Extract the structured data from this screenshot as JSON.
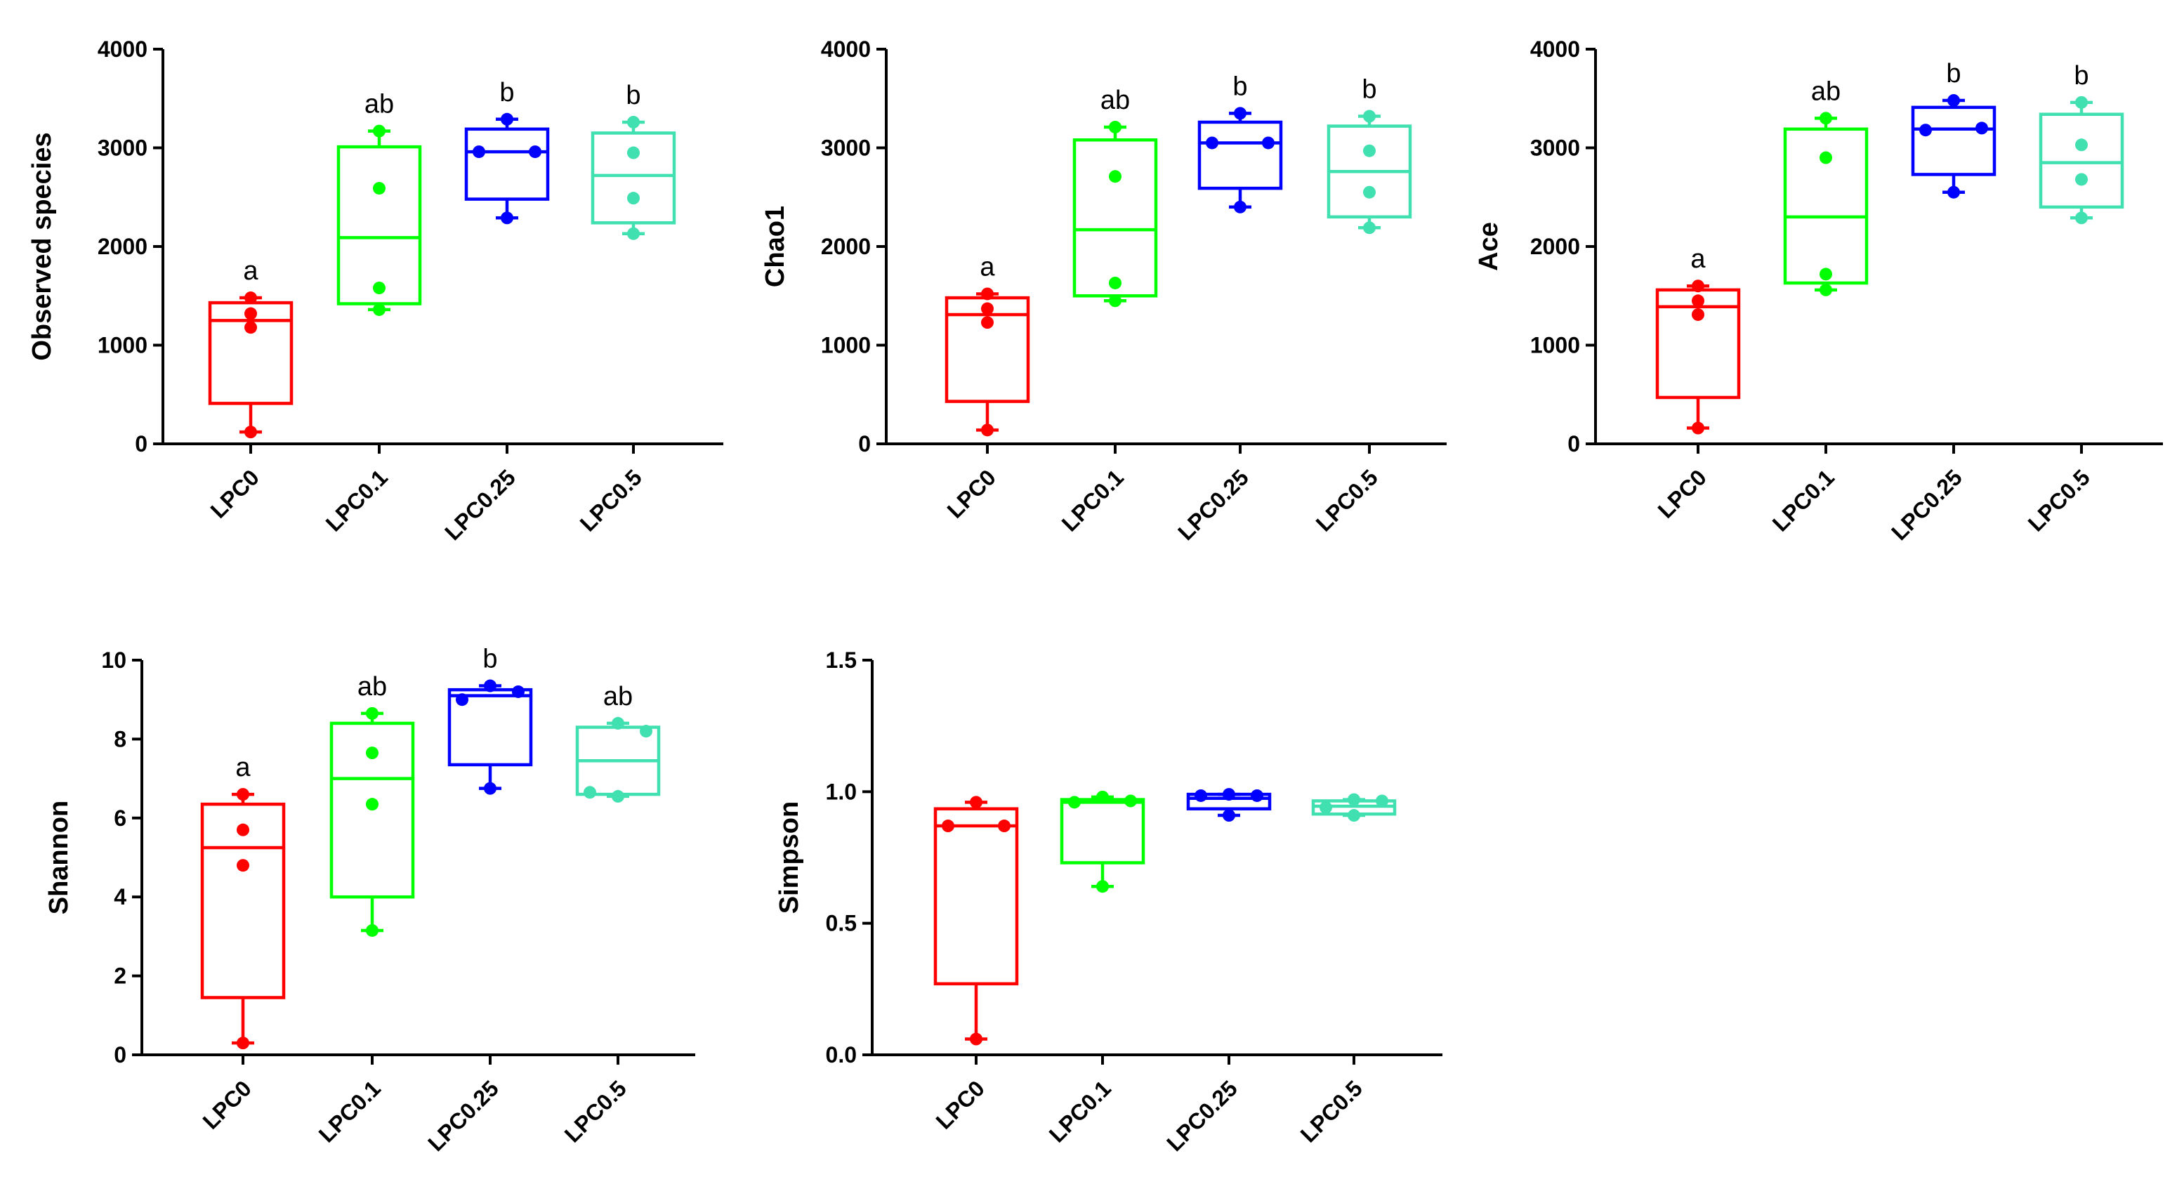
{
  "chart_data": [
    {
      "type": "box",
      "ylabel": "Observed species",
      "ylim": [
        0,
        4000
      ],
      "yticks": [
        "0",
        "1000",
        "2000",
        "3000",
        "4000"
      ],
      "tick_values": [
        0,
        1000,
        2000,
        3000,
        4000
      ],
      "categories": [
        "LPC0",
        "LPC0.1",
        "LPC0.25",
        "LPC0.5"
      ],
      "groups": [
        {
          "name": "LPC0",
          "color": "#ff0000",
          "min": 120,
          "q1": 410,
          "median": 1250,
          "q3": 1430,
          "max": 1480,
          "points": [
            120,
            1180,
            1320,
            1480
          ],
          "sig": "a"
        },
        {
          "name": "LPC0.1",
          "color": "#00ff00",
          "min": 1360,
          "q1": 1420,
          "median": 2090,
          "q3": 3010,
          "max": 3170,
          "points": [
            1360,
            1580,
            2590,
            3170
          ],
          "sig": "ab"
        },
        {
          "name": "LPC0.25",
          "color": "#0000ff",
          "min": 2290,
          "q1": 2480,
          "median": 2960,
          "q3": 3190,
          "max": 3290,
          "points": [
            2290,
            2960,
            2960,
            3290
          ],
          "sig": "b"
        },
        {
          "name": "LPC0.5",
          "color": "#40e0b0",
          "min": 2130,
          "q1": 2240,
          "median": 2720,
          "q3": 3150,
          "max": 3260,
          "points": [
            2130,
            2490,
            2950,
            3260
          ],
          "sig": "b"
        }
      ]
    },
    {
      "type": "box",
      "ylabel": "Chao1",
      "ylim": [
        0,
        4000
      ],
      "yticks": [
        "0",
        "1000",
        "2000",
        "3000",
        "4000"
      ],
      "tick_values": [
        0,
        1000,
        2000,
        3000,
        4000
      ],
      "categories": [
        "LPC0",
        "LPC0.1",
        "LPC0.25",
        "LPC0.5"
      ],
      "groups": [
        {
          "name": "LPC0",
          "color": "#ff0000",
          "min": 140,
          "q1": 430,
          "median": 1310,
          "q3": 1480,
          "max": 1520,
          "points": [
            140,
            1230,
            1370,
            1520
          ],
          "sig": "a"
        },
        {
          "name": "LPC0.1",
          "color": "#00ff00",
          "min": 1450,
          "q1": 1500,
          "median": 2170,
          "q3": 3080,
          "max": 3210,
          "points": [
            1450,
            1630,
            2710,
            3210
          ],
          "sig": "ab"
        },
        {
          "name": "LPC0.25",
          "color": "#0000ff",
          "min": 2400,
          "q1": 2590,
          "median": 3050,
          "q3": 3260,
          "max": 3350,
          "points": [
            2400,
            3050,
            3050,
            3350
          ],
          "sig": "b"
        },
        {
          "name": "LPC0.5",
          "color": "#40e0b0",
          "min": 2190,
          "q1": 2300,
          "median": 2760,
          "q3": 3220,
          "max": 3320,
          "points": [
            2190,
            2550,
            2970,
            3320
          ],
          "sig": "b"
        }
      ]
    },
    {
      "type": "box",
      "ylabel": "Ace",
      "ylim": [
        0,
        4000
      ],
      "yticks": [
        "0",
        "1000",
        "2000",
        "3000",
        "4000"
      ],
      "tick_values": [
        0,
        1000,
        2000,
        3000,
        4000
      ],
      "categories": [
        "LPC0",
        "LPC0.1",
        "LPC0.25",
        "LPC0.5"
      ],
      "groups": [
        {
          "name": "LPC0",
          "color": "#ff0000",
          "min": 160,
          "q1": 470,
          "median": 1390,
          "q3": 1560,
          "max": 1600,
          "points": [
            160,
            1310,
            1450,
            1600
          ],
          "sig": "a"
        },
        {
          "name": "LPC0.1",
          "color": "#00ff00",
          "min": 1560,
          "q1": 1630,
          "median": 2300,
          "q3": 3190,
          "max": 3300,
          "points": [
            1560,
            1720,
            2900,
            3300
          ],
          "sig": "ab"
        },
        {
          "name": "LPC0.25",
          "color": "#0000ff",
          "min": 2550,
          "q1": 2730,
          "median": 3190,
          "q3": 3410,
          "max": 3480,
          "points": [
            2550,
            3180,
            3200,
            3480
          ],
          "sig": "b"
        },
        {
          "name": "LPC0.5",
          "color": "#40e0b0",
          "min": 2290,
          "q1": 2400,
          "median": 2850,
          "q3": 3340,
          "max": 3460,
          "points": [
            2290,
            2680,
            3030,
            3460
          ],
          "sig": "b"
        }
      ]
    },
    {
      "type": "box",
      "ylabel": "Shannon",
      "ylim": [
        0,
        10
      ],
      "yticks": [
        "0",
        "2",
        "4",
        "6",
        "8",
        "10"
      ],
      "tick_values": [
        0,
        2,
        4,
        6,
        8,
        10
      ],
      "categories": [
        "LPC0",
        "LPC0.1",
        "LPC0.25",
        "LPC0.5"
      ],
      "groups": [
        {
          "name": "LPC0",
          "color": "#ff0000",
          "min": 0.3,
          "q1": 1.45,
          "median": 5.25,
          "q3": 6.35,
          "max": 6.6,
          "points": [
            0.3,
            4.8,
            5.7,
            6.6
          ],
          "sig": "a"
        },
        {
          "name": "LPC0.1",
          "color": "#00ff00",
          "min": 3.15,
          "q1": 4.0,
          "median": 7.0,
          "q3": 8.4,
          "max": 8.65,
          "points": [
            3.15,
            6.35,
            7.65,
            8.65
          ],
          "sig": "ab"
        },
        {
          "name": "LPC0.25",
          "color": "#0000ff",
          "min": 6.75,
          "q1": 7.35,
          "median": 9.1,
          "q3": 9.25,
          "max": 9.35,
          "points": [
            6.75,
            9.0,
            9.2,
            9.35
          ],
          "sig": "b"
        },
        {
          "name": "LPC0.5",
          "color": "#40e0b0",
          "min": 6.55,
          "q1": 6.6,
          "median": 7.45,
          "q3": 8.3,
          "max": 8.4,
          "points": [
            6.55,
            6.65,
            8.2,
            8.4
          ],
          "sig": "ab"
        }
      ]
    },
    {
      "type": "box",
      "ylabel": "Simpson",
      "ylim": [
        0,
        1.5
      ],
      "yticks": [
        "0.0",
        "0.5",
        "1.0",
        "1.5"
      ],
      "tick_values": [
        0,
        0.5,
        1.0,
        1.5
      ],
      "categories": [
        "LPC0",
        "LPC0.1",
        "LPC0.25",
        "LPC0.5"
      ],
      "groups": [
        {
          "name": "LPC0",
          "color": "#ff0000",
          "min": 0.06,
          "q1": 0.27,
          "median": 0.87,
          "q3": 0.935,
          "max": 0.96,
          "points": [
            0.06,
            0.87,
            0.87,
            0.96
          ],
          "sig": ""
        },
        {
          "name": "LPC0.1",
          "color": "#00ff00",
          "min": 0.64,
          "q1": 0.73,
          "median": 0.96,
          "q3": 0.97,
          "max": 0.98,
          "points": [
            0.64,
            0.96,
            0.965,
            0.98
          ],
          "sig": ""
        },
        {
          "name": "LPC0.25",
          "color": "#0000ff",
          "min": 0.91,
          "q1": 0.935,
          "median": 0.975,
          "q3": 0.99,
          "max": 0.99,
          "points": [
            0.91,
            0.985,
            0.985,
            0.99
          ],
          "sig": ""
        },
        {
          "name": "LPC0.5",
          "color": "#40e0b0",
          "min": 0.91,
          "q1": 0.915,
          "median": 0.945,
          "q3": 0.965,
          "max": 0.97,
          "points": [
            0.91,
            0.94,
            0.965,
            0.97
          ],
          "sig": ""
        }
      ]
    }
  ]
}
